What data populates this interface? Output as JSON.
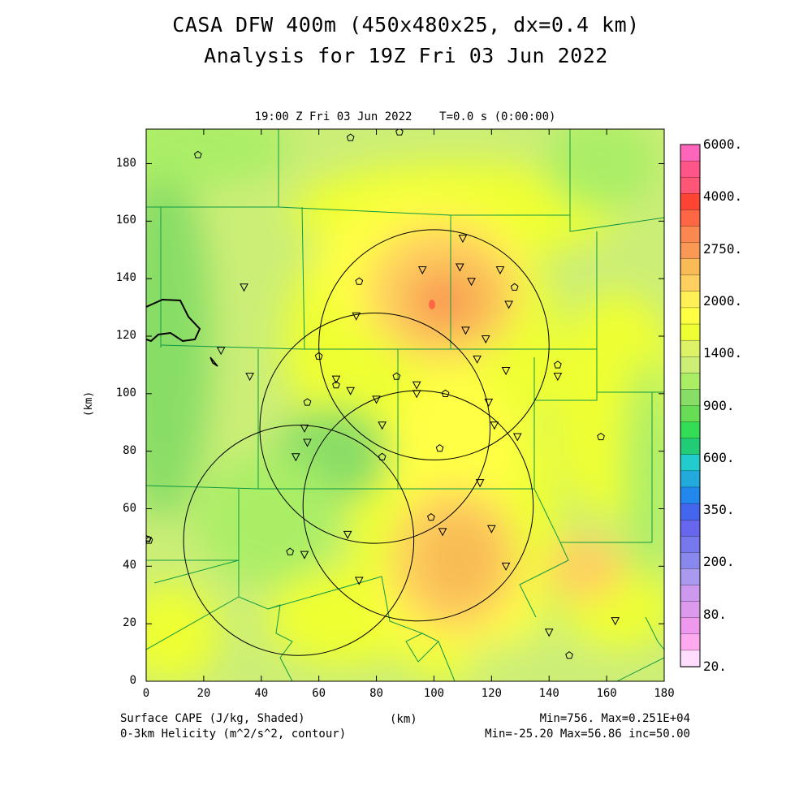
{
  "title_line1": "CASA DFW 400m (450x480x25, dx=0.4 km)",
  "title_line2": "Analysis for 19Z Fri 03 Jun 2022",
  "plot_time_label": "19:00 Z Fri 03 Jun 2022    T=0.0 s (0:00:00)",
  "axes": {
    "x_label": "(km)",
    "y_label": "(km)",
    "x_ticks": [
      "0",
      "20",
      "40",
      "60",
      "80",
      "100",
      "120",
      "140",
      "160",
      "180"
    ],
    "y_ticks": [
      "0",
      "20",
      "40",
      "60",
      "80",
      "100",
      "120",
      "140",
      "160",
      "180"
    ],
    "x_range_km": [
      0,
      180
    ],
    "y_range_km": [
      0,
      192
    ]
  },
  "footer": {
    "left_line1": "Surface CAPE (J/kg, Shaded)",
    "left_line2": "0-3km Helicity (m^2/s^2, contour)",
    "right_line1": "Min=756. Max=0.251E+04",
    "right_line2": "Min=-25.20 Max=56.86 inc=50.00"
  },
  "colorbar": {
    "labels": [
      "6000.",
      "4000.",
      "2750.",
      "2000.",
      "1400.",
      "900.",
      "600.",
      "350.",
      "200.",
      "80.",
      "20."
    ],
    "colors_top_to_bottom": [
      "#ff66bb",
      "#ff5588",
      "#ff5577",
      "#ff4433",
      "#ff6644",
      "#fa8850",
      "#fa9955",
      "#f8bb55",
      "#ffd060",
      "#fff055",
      "#ffff44",
      "#eeff33",
      "#ddf266",
      "#ccee77",
      "#aaee66",
      "#88dd66",
      "#66dd55",
      "#33dd55",
      "#22cc77",
      "#22cccc",
      "#22aadd",
      "#2288ee",
      "#4466ee",
      "#6666ee",
      "#7777ee",
      "#8888ee",
      "#aa99ee",
      "#cc99ee",
      "#dd99ee",
      "#ee99ee",
      "#ffaaee",
      "#ffddff"
    ]
  },
  "map": {
    "radar_rings_km": [
      {
        "cx": 100,
        "cy": 117,
        "r": 40
      },
      {
        "cx": 79.5,
        "cy": 88,
        "r": 40
      },
      {
        "cx": 94.5,
        "cy": 61,
        "r": 40
      },
      {
        "cx": 53,
        "cy": 49,
        "r": 40
      }
    ],
    "site_markers": {
      "triangles": [
        [
          110,
          154
        ],
        [
          96,
          143
        ],
        [
          109,
          144
        ],
        [
          113,
          139
        ],
        [
          123,
          143
        ],
        [
          126,
          131
        ],
        [
          111,
          122
        ],
        [
          118,
          119
        ],
        [
          115,
          112
        ],
        [
          125,
          108
        ],
        [
          143,
          106
        ],
        [
          73,
          127
        ],
        [
          36,
          106
        ],
        [
          34,
          137
        ],
        [
          26,
          115
        ],
        [
          66,
          105
        ],
        [
          71,
          101
        ],
        [
          80,
          98
        ],
        [
          94,
          103
        ],
        [
          94,
          100
        ],
        [
          119,
          97
        ],
        [
          121,
          89
        ],
        [
          129,
          85
        ],
        [
          82,
          89
        ],
        [
          55,
          88
        ],
        [
          56,
          83
        ],
        [
          52,
          78
        ],
        [
          116,
          69
        ],
        [
          120,
          53
        ],
        [
          103,
          52
        ],
        [
          125,
          40
        ],
        [
          70,
          51
        ],
        [
          55,
          44
        ],
        [
          74,
          35
        ],
        [
          140,
          17
        ],
        [
          163,
          21
        ]
      ],
      "pentagons": [
        [
          18,
          183
        ],
        [
          71,
          189
        ],
        [
          88,
          191
        ],
        [
          74,
          139
        ],
        [
          128,
          137
        ],
        [
          60,
          113
        ],
        [
          56,
          97
        ],
        [
          66,
          103
        ],
        [
          104,
          100
        ],
        [
          87,
          106
        ],
        [
          102,
          81
        ],
        [
          82,
          78
        ],
        [
          99,
          57
        ],
        [
          50,
          45
        ],
        [
          143,
          110
        ],
        [
          158,
          85
        ],
        [
          147,
          9
        ],
        [
          1,
          49
        ]
      ]
    }
  }
}
